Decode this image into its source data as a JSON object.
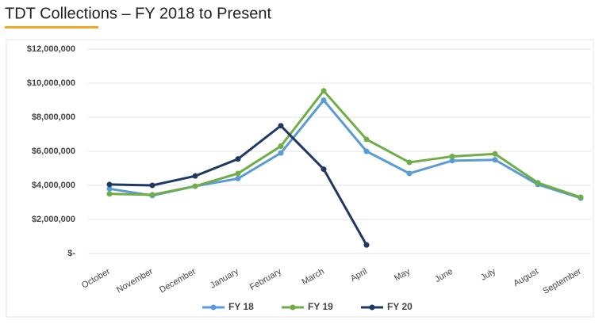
{
  "chart_data": {
    "type": "line",
    "title": "TDT Collections – FY 2018 to Present",
    "categories": [
      "October",
      "November",
      "December",
      "January",
      "February",
      "March",
      "April",
      "May",
      "June",
      "July",
      "August",
      "September"
    ],
    "series": [
      {
        "name": "FY 18",
        "color": "#5b9bd5",
        "values": [
          3800000,
          3400000,
          3950000,
          4400000,
          5900000,
          9000000,
          6000000,
          4700000,
          5450000,
          5500000,
          4050000,
          3250000
        ]
      },
      {
        "name": "FY 19",
        "color": "#70ad47",
        "values": [
          3500000,
          3450000,
          3950000,
          4700000,
          6300000,
          9550000,
          6700000,
          5350000,
          5700000,
          5850000,
          4150000,
          3300000
        ]
      },
      {
        "name": "FY 20",
        "color": "#1f3864",
        "values": [
          4050000,
          4000000,
          4550000,
          5550000,
          7500000,
          4950000,
          500000,
          null,
          null,
          null,
          null,
          null
        ]
      }
    ],
    "ylim": [
      0,
      12000000
    ],
    "yticks": [
      {
        "value": 0,
        "label": "$-"
      },
      {
        "value": 2000000,
        "label": "$2,000,000"
      },
      {
        "value": 4000000,
        "label": "$4,000,000"
      },
      {
        "value": 6000000,
        "label": "$6,000,000"
      },
      {
        "value": 8000000,
        "label": "$8,000,000"
      },
      {
        "value": 10000000,
        "label": "$10,000,000"
      },
      {
        "value": 12000000,
        "label": "$12,000,000"
      }
    ],
    "grid": true,
    "legend": "bottom"
  }
}
